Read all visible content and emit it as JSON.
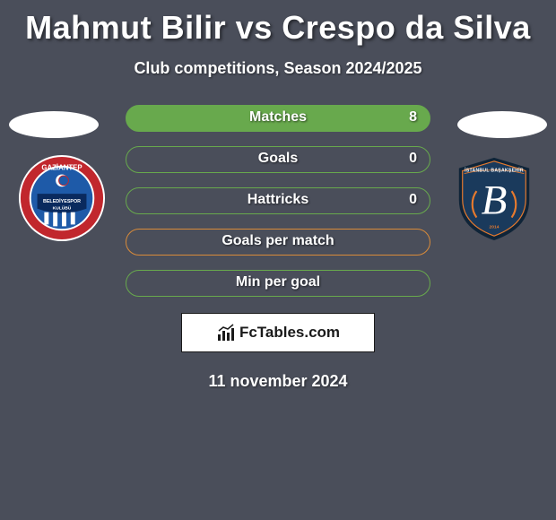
{
  "title": "Mahmut Bilir vs Crespo da Silva",
  "subtitle": "Club competitions, Season 2024/2025",
  "date": "11 november 2024",
  "brand": "FcTables.com",
  "colors": {
    "bg": "#4a4e5a",
    "text": "#ffffff",
    "row1_border": "#68a94d",
    "row1_fill": "#68a94d",
    "row2_border": "#68a94d",
    "row2_fill": "transparent",
    "row3_border": "#68a94d",
    "row3_fill": "transparent",
    "row4_border": "#d98b3a",
    "row4_fill": "transparent",
    "row5_border": "#68a94d",
    "row5_fill": "transparent",
    "footer_bg": "#ffffff",
    "footer_border": "#1a1a1a"
  },
  "rows": [
    {
      "label": "Matches",
      "right": "8"
    },
    {
      "label": "Goals",
      "right": "0"
    },
    {
      "label": "Hattricks",
      "right": "0"
    },
    {
      "label": "Goals per match",
      "right": ""
    },
    {
      "label": "Min per goal",
      "right": ""
    }
  ],
  "badge_left": {
    "name": "Gaziantep",
    "text_top": "GAZİANTEP",
    "ring_outer": "#ffffff",
    "ring_red": "#c1272d",
    "blue": "#1e5aa8",
    "banner_bg": "#0a2a5e"
  },
  "badge_right": {
    "name": "Istanbul Basaksehir",
    "text_top": "İSTANBUL BAŞAKŞEHİR",
    "shield_dark": "#0f2438",
    "shield_blue": "#1a3a5c",
    "accent": "#e67a2e",
    "letter": "B"
  }
}
